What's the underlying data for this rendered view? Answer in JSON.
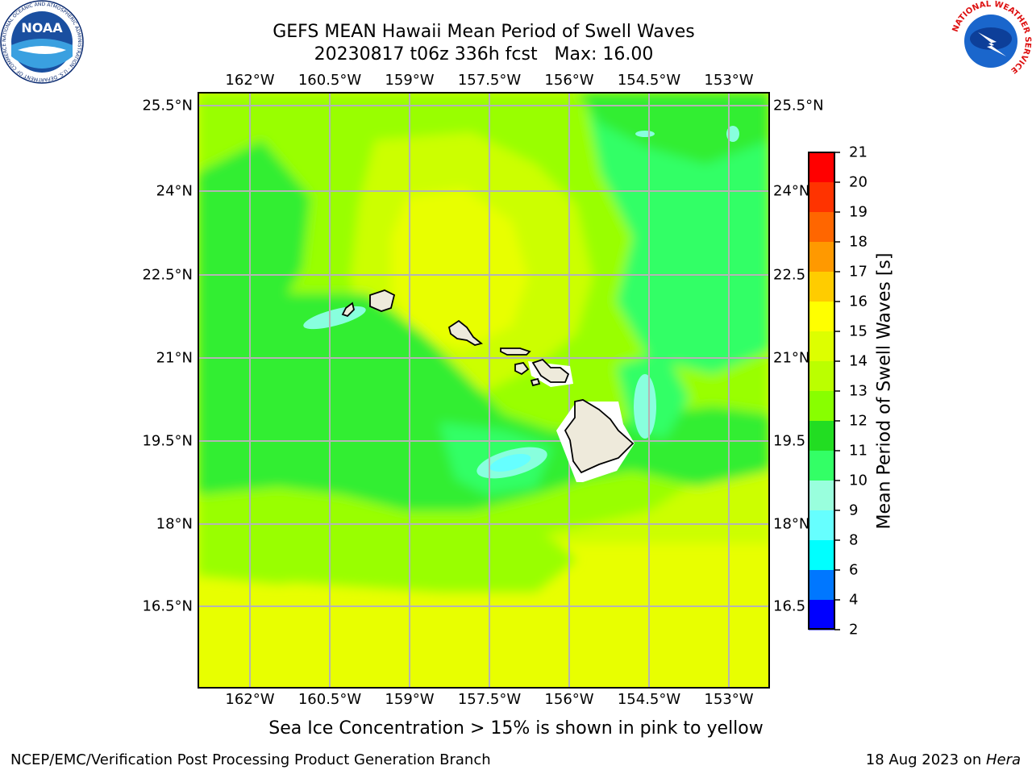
{
  "header": {
    "title_line1": "GEFS MEAN Hawaii Mean Period of Swell Waves",
    "title_line2": "20230817 t06z 336h fcst   Max: 16.00"
  },
  "logos": {
    "noaa_text": "NOAA",
    "noaa_ring": "NATIONAL OCEANIC AND ATMOSPHERIC ADMINISTRATION · U.S. DEPARTMENT OF COMMERCE",
    "nws_ring": "NATIONAL WEATHER SERVICE"
  },
  "map": {
    "lon_labels": [
      "162°W",
      "160.5°W",
      "159°W",
      "157.5°W",
      "156°W",
      "154.5°W",
      "153°W"
    ],
    "lat_labels": [
      "25.5°N",
      "24°N",
      "22.5°N",
      "21°N",
      "19.5°N",
      "18°N",
      "16.5°N"
    ],
    "lat_labels_right": [
      "25.5°N",
      "24°N",
      "22.5",
      "21°N",
      "19.5",
      "18°N",
      "16.5"
    ],
    "colors": {
      "yellow": "#f0ff00",
      "yellow_green": "#ccff00",
      "light_green": "#99ff00",
      "green": "#33ee33",
      "spring_green": "#33ff66",
      "aquamarine": "#88ffdd",
      "cyan": "#66ffff",
      "land": "#eeeadb"
    }
  },
  "colorbar": {
    "label": "Mean Period of Swell Waves [s]",
    "ticks": [
      "21",
      "20",
      "19",
      "18",
      "17",
      "16",
      "15",
      "14",
      "13",
      "12",
      "11",
      "10",
      "9",
      "8",
      "6",
      "4",
      "2"
    ],
    "colors": [
      "#ff0000",
      "#ff3300",
      "#ff6600",
      "#ff9900",
      "#ffcc00",
      "#ffff00",
      "#ddff00",
      "#bbff00",
      "#88ff00",
      "#22dd22",
      "#33ff66",
      "#99ffdd",
      "#66ffff",
      "#00ffff",
      "#0077ff",
      "#0000ff"
    ]
  },
  "footer": {
    "caption": "Sea Ice Concentration > 15% is shown in pink to yellow",
    "left": "NCEP/EMC/Verification Post Processing Product Generation Branch",
    "date": "18 Aug 2023 on ",
    "host": "Hera"
  }
}
